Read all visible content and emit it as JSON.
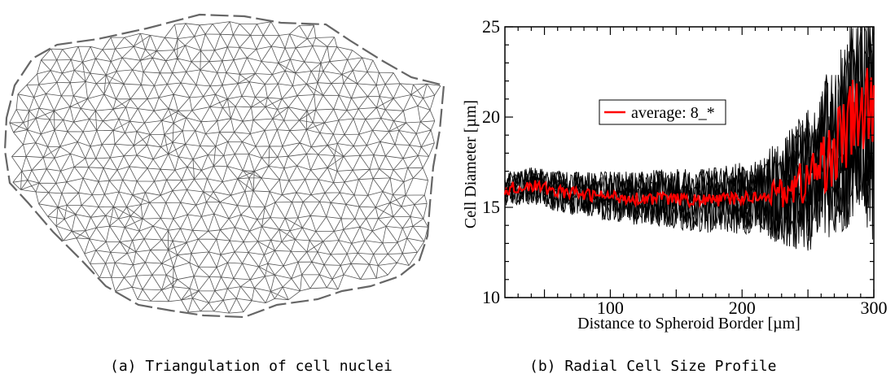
{
  "panels": {
    "a": {
      "caption": "(a) Triangulation of cell nuclei"
    },
    "b": {
      "caption": "(b) Radial Cell Size Profile"
    }
  },
  "colors": {
    "individual": "#000000",
    "average": "#ff0000",
    "mesh": "#555555"
  },
  "chart_data": {
    "type": "line",
    "xlabel": "Distance to Spheroid Border [µm]",
    "ylabel": "Cell Diameter [µm]",
    "xlim": [
      20,
      300
    ],
    "ylim": [
      10,
      25
    ],
    "xticks": [
      100,
      200,
      300
    ],
    "yticks": [
      10,
      15,
      20,
      25
    ],
    "legend": {
      "entries": [
        "average: 8_*"
      ],
      "placement": "upper-left-center"
    },
    "grid": false,
    "series": [
      {
        "name": "average: 8_*",
        "x": [
          20,
          40,
          60,
          80,
          100,
          120,
          140,
          160,
          180,
          200,
          220,
          240,
          250,
          260,
          270,
          280,
          290,
          300
        ],
        "y": [
          16.0,
          16.2,
          15.9,
          15.7,
          15.6,
          15.5,
          15.5,
          15.4,
          15.4,
          15.5,
          15.7,
          16.1,
          16.6,
          17.3,
          18.3,
          19.2,
          20.5,
          19.5
        ]
      }
    ]
  }
}
